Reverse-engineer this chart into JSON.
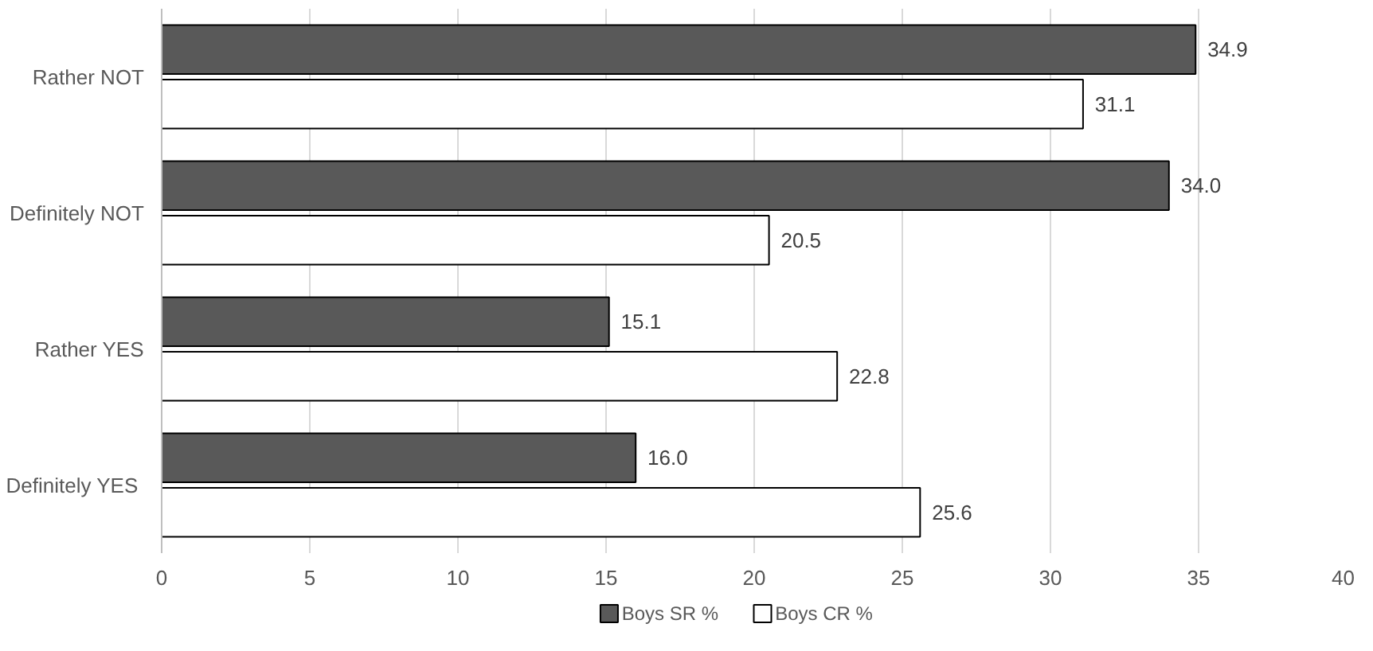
{
  "chart_data": {
    "type": "bar",
    "orientation": "horizontal",
    "categories": [
      "Rather NOT",
      "Definitely NOT",
      "Rather YES",
      "Definitely  YES"
    ],
    "series": [
      {
        "name": "Boys SR %",
        "color": "#595959",
        "values": [
          34.9,
          34.0,
          15.1,
          16.0
        ],
        "value_labels": [
          "34.9",
          "34.0",
          "15.1",
          "16.0"
        ]
      },
      {
        "name": "Boys CR %",
        "color": "#ffffff",
        "values": [
          31.1,
          20.5,
          22.8,
          25.6
        ],
        "value_labels": [
          "31.1",
          "20.5",
          "22.8",
          "25.6"
        ]
      }
    ],
    "xlim": [
      0,
      40
    ],
    "xticks": [
      0,
      5,
      10,
      15,
      20,
      25,
      30,
      35,
      40
    ],
    "grid": "x",
    "legend": "bottom"
  }
}
